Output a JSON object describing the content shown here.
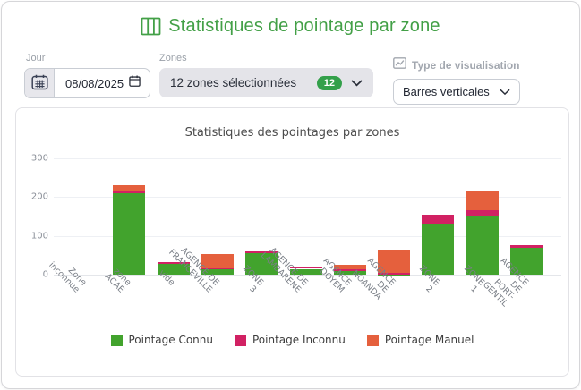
{
  "header": {
    "title": "Statistiques de pointage par zone"
  },
  "controls": {
    "jour": {
      "label": "Jour",
      "value": "08/08/2025"
    },
    "zones": {
      "label": "Zones",
      "value": "12 zones sélectionnées",
      "badge": "12"
    },
    "type": {
      "label": "Type de visualisation",
      "value": "Barres verticales"
    }
  },
  "colors": {
    "accent_green": "#43a047",
    "badge_green": "#33a04a",
    "connu_green": "#42a32d",
    "inconnu_crimson": "#d12163",
    "manuel_orange": "#e5603d"
  },
  "chart_data": {
    "type": "bar",
    "stacked": true,
    "title": "Statistiques des pointages par zones",
    "categories": [
      "Zone inconnue",
      "zone ACAE",
      "vide",
      "AGENCE DE\nFRANCEVILLE",
      "ZONE 3",
      "AGENCE DE\nLAMBARENE",
      "AGENCE DOYEM",
      "AGENCE DE\nNOANDA",
      "ZONE 2",
      "ZONE 1",
      "AGENCE DE\nPORT-GENTIL"
    ],
    "series": [
      {
        "name": "Pointage Connu",
        "color": "#42a32d",
        "values": [
          0,
          211,
          28,
          14,
          55,
          15,
          10,
          1,
          131,
          150,
          70
        ]
      },
      {
        "name": "Pointage Inconnu",
        "color": "#d12163",
        "values": [
          0,
          4,
          4,
          3,
          6,
          4,
          3,
          4,
          24,
          16,
          7
        ]
      },
      {
        "name": "Pointage Manuel",
        "color": "#e5603d",
        "values": [
          0,
          15,
          0,
          35,
          0,
          0,
          13,
          57,
          0,
          51,
          0
        ]
      }
    ],
    "ylim": [
      0,
      300
    ],
    "yticks": [
      0,
      100,
      200,
      300
    ],
    "grid": true,
    "legend_position": "bottom"
  }
}
